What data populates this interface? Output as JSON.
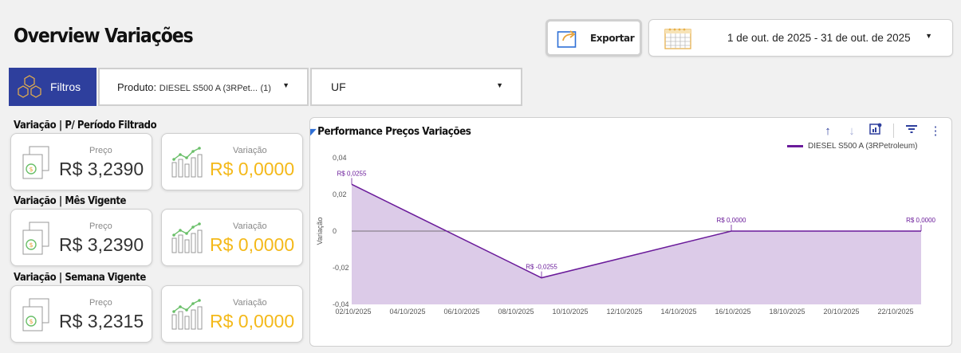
{
  "header": {
    "title": "Overview Variações",
    "export_label": "Exportar",
    "date_range": "1 de out. de 2025 - 31 de out. de 2025"
  },
  "filters": {
    "button_label": "Filtros",
    "produto_label": "Produto:",
    "produto_value": "DIESEL S500 A (3RPet...",
    "produto_count": "(1)",
    "uf_label": "UF"
  },
  "sections": [
    {
      "title": "Variação | P/ Período Filtrado",
      "preco_label": "Preço",
      "preco_value": "R$ 3,2390",
      "variacao_label": "Variação",
      "variacao_value": "R$ 0,0000"
    },
    {
      "title": "Variação | Mês Vigente",
      "preco_label": "Preço",
      "preco_value": "R$ 3,2390",
      "variacao_label": "Variação",
      "variacao_value": "R$ 0,0000"
    },
    {
      "title": "Variação | Semana Vigente",
      "preco_label": "Preço",
      "preco_value": "R$ 3,2315",
      "variacao_label": "Variação",
      "variacao_value": "R$ 0,0000"
    }
  ],
  "chart_panel": {
    "title": "Performance Preços Variações",
    "toolbar_icons": [
      "arrow-up-icon",
      "arrow-down-icon",
      "chart-settings-icon",
      "filter-icon",
      "more-vert-icon"
    ]
  },
  "colors": {
    "brand_blue": "#2e3f9d",
    "value_yellow": "#f4b91a",
    "series_line": "#6a1b9a",
    "series_fill": "#dccbe8"
  },
  "chart_data": {
    "type": "area",
    "title": "Performance Preços Variações",
    "xlabel": "",
    "ylabel": "Variação",
    "ylim": [
      -0.04,
      0.04
    ],
    "y_ticks": [
      "0,04",
      "0,02",
      "0",
      "-0,02",
      "-0,04"
    ],
    "y_tick_values": [
      0.04,
      0.02,
      0,
      -0.02,
      -0.04
    ],
    "x_ticks": [
      "02/10/2025",
      "04/10/2025",
      "06/10/2025",
      "08/10/2025",
      "10/10/2025",
      "12/10/2025",
      "14/10/2025",
      "16/10/2025",
      "18/10/2025",
      "20/10/2025",
      "22/10/2025"
    ],
    "x_start": "2025-10-02",
    "x_end": "2025-10-23",
    "legend_position": "top-right",
    "grid": false,
    "series": [
      {
        "name": "DIESEL S500 A (3RPetroleum)",
        "points": [
          {
            "x": "2025-10-02",
            "y": 0.0255,
            "label": "R$ 0,0255"
          },
          {
            "x": "2025-10-09",
            "y": -0.0255,
            "label": "R$ -0,0255"
          },
          {
            "x": "2025-10-16",
            "y": 0.0,
            "label": "R$ 0,0000"
          },
          {
            "x": "2025-10-23",
            "y": 0.0,
            "label": "R$ 0,0000"
          }
        ]
      }
    ]
  }
}
